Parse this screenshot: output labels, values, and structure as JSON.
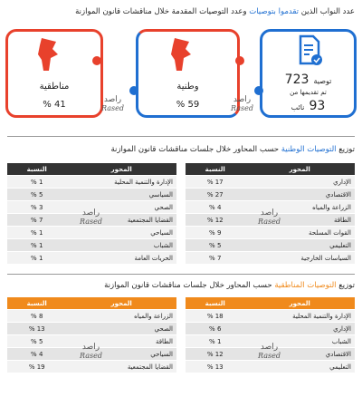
{
  "summary": {
    "title": [
      "عدد النواب الذين",
      "تقدموا بتوصيات",
      "وعدد التوصيات المقدمة خلال مناقشات قانون الموازنة"
    ],
    "recommendations": {
      "number": "723",
      "label": "توصية"
    },
    "submitted_by": "تم تقديمها من",
    "deputies": {
      "number": "93",
      "label": "نائب"
    },
    "national": {
      "label": "وطنية",
      "share": "59 %"
    },
    "regional": {
      "label": "مناطقية",
      "share": "41 %"
    }
  },
  "watermark": {
    "ar": "راصد",
    "en": "Rased"
  },
  "national_section": {
    "title": [
      "توزيع",
      "التوصيات الوطنية",
      "حسب المحاور خلال جلسات مناقشات قانون الموازنة"
    ],
    "headers": [
      "المحور",
      "النسبة"
    ],
    "tables": [
      [
        [
          "الإداري",
          "17 %"
        ],
        [
          "الاقتصادي",
          "27 %"
        ],
        [
          "الزراعة والمياه",
          "4 %"
        ],
        [
          "الطاقة",
          "12 %"
        ],
        [
          "القوات المسلحة",
          "9 %"
        ],
        [
          "التعليمي",
          "5 %"
        ],
        [
          "السياسات الخارجية",
          "7 %"
        ]
      ],
      [
        [
          "الإدارة والتنمية المحلية",
          "1 %"
        ],
        [
          "السياسي",
          "5 %"
        ],
        [
          "الصحي",
          "3 %"
        ],
        [
          "القضايا المجتمعية",
          "7 %"
        ],
        [
          "السياحي",
          "1 %"
        ],
        [
          "الشباب",
          "1 %"
        ],
        [
          "الحريات العامة",
          "1 %"
        ]
      ]
    ]
  },
  "regional_section": {
    "title": [
      "توزيع",
      "التوصيات المناطقية",
      "حسب المحاور خلال جلسات مناقشات قانون الموازنة"
    ],
    "headers": [
      "المحور",
      "النسبة"
    ],
    "tables": [
      [
        [
          "الإدارة والتنمية المحلية",
          "18 %"
        ],
        [
          "الإداري",
          "6 %"
        ],
        [
          "الشباب",
          "1 %"
        ],
        [
          "الاقتصادي",
          "12 %"
        ],
        [
          "التعليمي",
          "13 %"
        ]
      ],
      [
        [
          "الزراعة والمياه",
          "8 %"
        ],
        [
          "الصحي",
          "13 %"
        ],
        [
          "الطاقة",
          "5 %"
        ],
        [
          "السياحي",
          "4 %"
        ],
        [
          "القضايا المجتمعية",
          "19 %"
        ]
      ]
    ]
  }
}
